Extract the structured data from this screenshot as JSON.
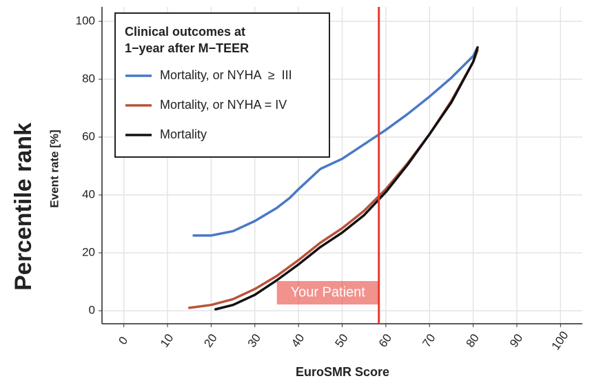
{
  "chart_data": {
    "type": "line",
    "ylabel_outer": "Percentile rank",
    "ylabel": "Event rate [%]",
    "xlabel": "EuroSMR Score",
    "legend_title": [
      "Clinical outcomes at",
      "1−year after M−TEER"
    ],
    "legend_position": "upper left",
    "grid": true,
    "xlim": [
      -5,
      105
    ],
    "xticks": [
      0,
      10,
      20,
      30,
      40,
      50,
      60,
      70,
      80,
      90,
      100
    ],
    "ylim": [
      -4.5,
      105
    ],
    "yticks": [
      0,
      20,
      40,
      60,
      80,
      100
    ],
    "vline": {
      "x": 58.4,
      "color": "#e8392f",
      "label": "Your Patient"
    },
    "series": [
      {
        "name": "Mortality, or NYHA  ≥  III",
        "color": "#4a78c6",
        "x": [
          16,
          20,
          25,
          30,
          35,
          38,
          40,
          45,
          50,
          55,
          60,
          65,
          70,
          75,
          80,
          81
        ],
        "values": [
          26,
          26,
          27.5,
          31,
          35.5,
          39,
          42,
          49,
          52.5,
          57.5,
          62.5,
          68,
          74,
          80.5,
          88,
          91
        ]
      },
      {
        "name": "Mortality, or NYHA = IV",
        "color": "#b9523a",
        "x": [
          15,
          20,
          25,
          30,
          35,
          40,
          45,
          50,
          55,
          60,
          65,
          70,
          75,
          80,
          81
        ],
        "values": [
          1,
          2,
          4,
          7.5,
          12,
          17.5,
          23.5,
          28.5,
          34.5,
          42,
          51,
          61,
          72.5,
          86,
          90
        ]
      },
      {
        "name": "Mortality",
        "color": "#111111",
        "x": [
          21,
          25,
          30,
          35,
          40,
          45,
          50,
          55,
          60,
          65,
          70,
          75,
          80,
          81
        ],
        "values": [
          0.5,
          2,
          5.5,
          10.5,
          16,
          22,
          27,
          33,
          41,
          50.5,
          61,
          72,
          86,
          91
        ]
      }
    ]
  }
}
